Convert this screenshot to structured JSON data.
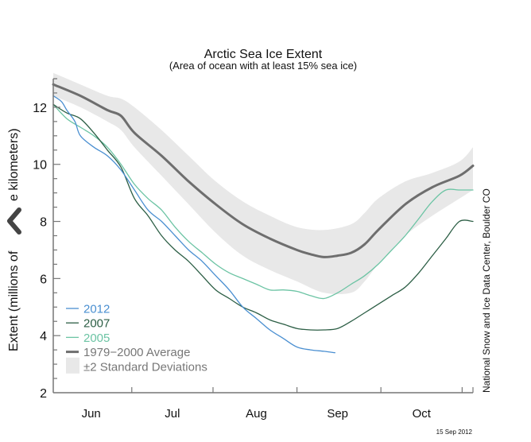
{
  "chart_data": {
    "type": "line",
    "title": "Arctic Sea Ice Extent",
    "subtitle": "(Area of ocean with at least 15% sea ice)",
    "xlabel": "",
    "ylabel": "Extent (millions of square kilometers)",
    "ylabel_visible": [
      "Extent (millions of ",
      "e kilometers)"
    ],
    "ylim": [
      2,
      13
    ],
    "yticks": [
      2,
      4,
      6,
      8,
      10,
      12
    ],
    "x_unit": "day index from start of Jun (0 = ~Jun 1 minus 8 days)",
    "xlim": [
      0,
      155
    ],
    "x_month_ticks": [
      29,
      59,
      90,
      121,
      151
    ],
    "xtick_labels": [
      {
        "label": "Jun",
        "x": 14
      },
      {
        "label": "Jul",
        "x": 44
      },
      {
        "label": "Aug",
        "x": 75
      },
      {
        "label": "Sep",
        "x": 105
      },
      {
        "label": "Oct",
        "x": 136
      }
    ],
    "series": [
      {
        "name": "±2 Standard Deviations",
        "kind": "band",
        "color": "#e8e8e8",
        "x": [
          0,
          10,
          20,
          25,
          30,
          40,
          50,
          60,
          70,
          80,
          90,
          100,
          110,
          115,
          120,
          130,
          140,
          150,
          155
        ],
        "upper": [
          13.2,
          12.8,
          12.4,
          12.3,
          12.0,
          11.2,
          10.3,
          9.4,
          8.7,
          8.2,
          7.8,
          7.7,
          7.9,
          8.3,
          8.8,
          9.4,
          9.7,
          10.1,
          10.6
        ],
        "lower": [
          12.4,
          12.0,
          11.5,
          11.2,
          10.6,
          9.6,
          8.6,
          7.6,
          6.8,
          6.3,
          5.9,
          5.5,
          5.5,
          5.9,
          6.5,
          7.5,
          8.2,
          8.8,
          9.1
        ]
      },
      {
        "name": "1979−2000 Average",
        "kind": "line",
        "color": "#6e6e6e",
        "width": 3,
        "x": [
          0,
          10,
          20,
          25,
          30,
          40,
          50,
          60,
          70,
          80,
          90,
          95,
          100,
          105,
          110,
          115,
          120,
          130,
          140,
          150,
          155
        ],
        "values": [
          12.8,
          12.4,
          11.9,
          11.7,
          11.1,
          10.3,
          9.4,
          8.6,
          7.9,
          7.4,
          7.0,
          6.85,
          6.75,
          6.8,
          6.9,
          7.2,
          7.7,
          8.6,
          9.2,
          9.6,
          9.95
        ]
      },
      {
        "name": "2005",
        "kind": "line",
        "color": "#6cc4a4",
        "width": 1.3,
        "x": [
          0,
          5,
          10,
          15,
          20,
          25,
          30,
          35,
          40,
          45,
          50,
          55,
          60,
          65,
          70,
          75,
          80,
          85,
          90,
          95,
          100,
          105,
          110,
          115,
          120,
          125,
          130,
          135,
          140,
          145,
          150,
          155
        ],
        "values": [
          12.1,
          11.6,
          11.3,
          11.0,
          10.6,
          10.0,
          9.3,
          8.8,
          8.4,
          7.8,
          7.3,
          6.9,
          6.5,
          6.2,
          6.0,
          5.8,
          5.6,
          5.6,
          5.55,
          5.4,
          5.3,
          5.5,
          5.8,
          6.1,
          6.5,
          7.0,
          7.5,
          8.1,
          8.7,
          9.1,
          9.1,
          9.1
        ]
      },
      {
        "name": "2007",
        "kind": "line",
        "color": "#2c5e45",
        "width": 1.3,
        "x": [
          0,
          5,
          10,
          15,
          20,
          25,
          30,
          35,
          40,
          45,
          50,
          55,
          60,
          65,
          70,
          75,
          80,
          85,
          90,
          95,
          100,
          105,
          110,
          115,
          120,
          125,
          130,
          135,
          140,
          145,
          150,
          155
        ],
        "values": [
          12.1,
          11.8,
          11.6,
          11.1,
          10.5,
          9.9,
          8.8,
          8.2,
          7.5,
          7.0,
          6.6,
          6.1,
          5.6,
          5.3,
          5.0,
          4.8,
          4.55,
          4.4,
          4.25,
          4.2,
          4.2,
          4.25,
          4.5,
          4.8,
          5.1,
          5.4,
          5.7,
          6.2,
          6.8,
          7.4,
          8.0,
          8.0
        ]
      },
      {
        "name": "2012",
        "kind": "line",
        "color": "#4a8fd1",
        "width": 1.3,
        "x": [
          0,
          3,
          5,
          8,
          10,
          15,
          20,
          25,
          30,
          35,
          40,
          45,
          50,
          55,
          60,
          65,
          70,
          75,
          80,
          85,
          90,
          95,
          100,
          104
        ],
        "values": [
          12.4,
          12.2,
          11.9,
          11.5,
          11.0,
          10.6,
          10.3,
          9.8,
          9.1,
          8.4,
          8.0,
          7.5,
          7.0,
          6.6,
          6.1,
          5.6,
          5.0,
          4.6,
          4.2,
          3.9,
          3.6,
          3.5,
          3.45,
          3.4
        ]
      }
    ],
    "legend": {
      "placement": "bottom-left",
      "entries": [
        {
          "label": "2012",
          "color": "#4a8fd1",
          "kind": "thin"
        },
        {
          "label": "2007",
          "color": "#2c5e45",
          "kind": "thin"
        },
        {
          "label": "2005",
          "color": "#6cc4a4",
          "kind": "thin"
        },
        {
          "label": "1979−2000 Average",
          "color": "#6e6e6e",
          "kind": "thick"
        },
        {
          "label": "±2 Standard Deviations",
          "color": "#e8e8e8",
          "kind": "box"
        }
      ]
    },
    "credit": "National Snow and Ice Data Center, Boulder CO",
    "date_stamp": "15 Sep 2012",
    "grid": false
  },
  "ui": {
    "back_icon": "chevron-left-icon"
  }
}
